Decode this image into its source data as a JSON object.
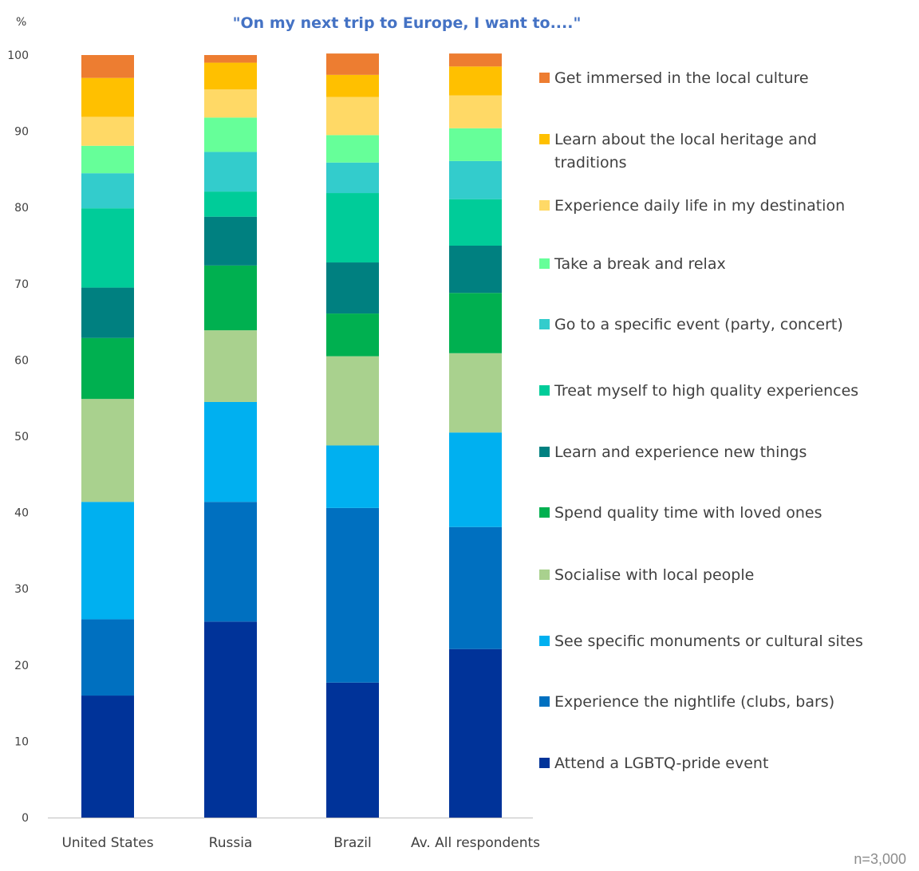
{
  "chart_data": {
    "type": "bar",
    "stacked": true,
    "title": "\"On my next trip to Europe, I want to....\"",
    "unit_label": "%",
    "footnote": "n=3,000",
    "categories": [
      "United States",
      "Russia",
      "Brazil",
      "Av. All respondents"
    ],
    "ylim": [
      0,
      100
    ],
    "yticks": [
      0,
      10,
      20,
      30,
      40,
      50,
      60,
      70,
      80,
      90,
      100
    ],
    "grid": false,
    "legend_position": "right",
    "series": [
      {
        "name": "Attend a LGBTQ-pride event",
        "color": "#003399",
        "values": [
          16,
          25.7,
          17.7,
          22.1
        ]
      },
      {
        "name": "Experience the nightlife (clubs, bars)",
        "color": "#0070C0",
        "values": [
          10,
          15.7,
          22.9,
          16.0
        ]
      },
      {
        "name": "See specific monuments or cultural sites",
        "color": "#00B0F0",
        "values": [
          15.4,
          13.1,
          8.2,
          12.4
        ]
      },
      {
        "name": "Socialise with local people",
        "color": "#A9D18E",
        "values": [
          13.5,
          9.4,
          11.7,
          10.4
        ]
      },
      {
        "name": "Spend quality time with loved ones",
        "color": "#00B050",
        "values": [
          8.0,
          8.5,
          5.6,
          7.9
        ]
      },
      {
        "name": "Learn and experience new things",
        "color": "#008080",
        "values": [
          6.6,
          6.4,
          6.7,
          6.2
        ]
      },
      {
        "name": "Treat myself to high quality experiences",
        "color": "#00CC99",
        "values": [
          10.4,
          3.3,
          9.1,
          6.1
        ]
      },
      {
        "name": "Go to a specific event (party, concert)",
        "color": "#33CCCC",
        "values": [
          4.6,
          5.2,
          4.0,
          5.0
        ]
      },
      {
        "name": "Take a break and relax",
        "color": "#66FF99",
        "values": [
          3.6,
          4.5,
          3.6,
          4.3
        ]
      },
      {
        "name": "Experience daily life in my destination",
        "color": "#FFD966",
        "values": [
          3.8,
          3.7,
          5.0,
          4.3
        ]
      },
      {
        "name": "Learn about the local heritage and traditions",
        "color": "#FFC000",
        "values": [
          5.1,
          3.5,
          2.9,
          3.8
        ]
      },
      {
        "name": "Get immersed in the local culture",
        "color": "#ED7D31",
        "values": [
          3.0,
          1.0,
          2.8,
          1.7
        ]
      }
    ]
  }
}
